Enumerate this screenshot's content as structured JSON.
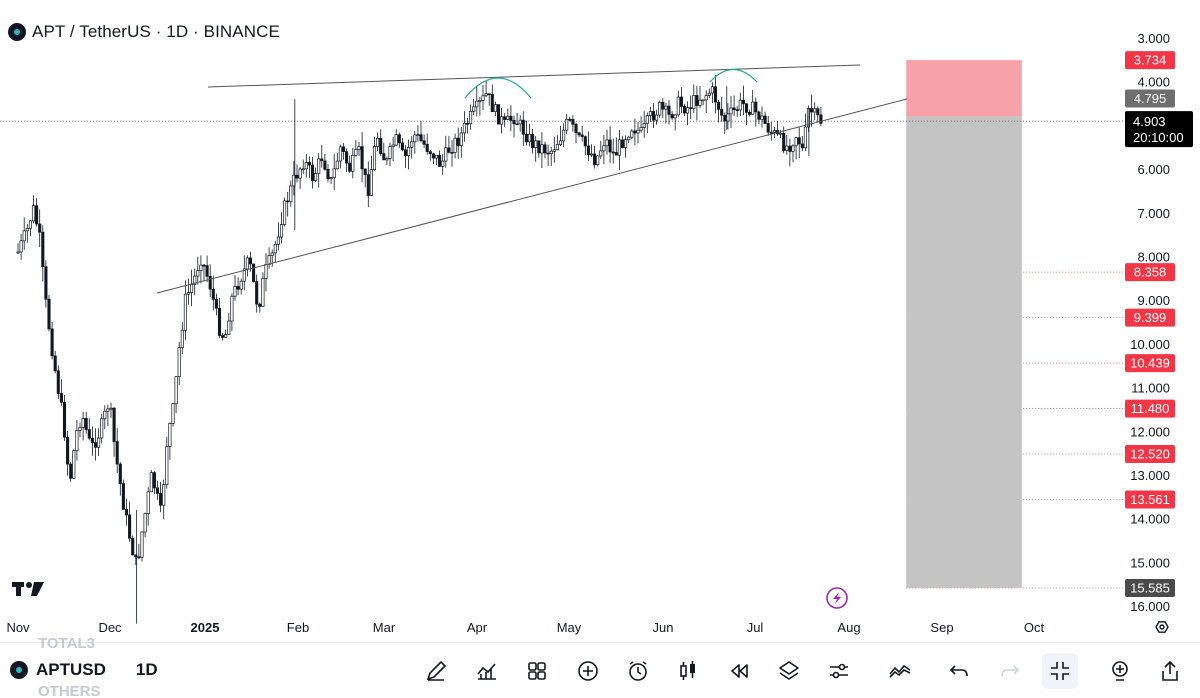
{
  "header": {
    "title": "APT / TetherUS · 1D · BINANCE"
  },
  "chart_data": {
    "type": "candlestick",
    "x_axis_labels": [
      "Nov",
      "Dec",
      "2025",
      "Feb",
      "Mar",
      "Apr",
      "May",
      "Jun",
      "Jul",
      "Aug",
      "Sep",
      "Oct"
    ],
    "y_axis_labels": [
      "3.000",
      "4.000",
      "5.000",
      "6.000",
      "7.000",
      "8.000",
      "9.000",
      "10.000",
      "11.000",
      "12.000",
      "13.000",
      "14.000",
      "15.000",
      "16.000"
    ],
    "current_price": "4.903",
    "countdown": "20:10:00",
    "marked_levels": [
      "3.734",
      "4.795",
      "8.358",
      "9.399",
      "10.439",
      "11.480",
      "12.520",
      "13.561",
      "15.585"
    ],
    "position": {
      "stop": 3.734,
      "entry": 4.795,
      "target": 15.585
    },
    "price_path": [
      [
        "2024-11-01",
        7.9
      ],
      [
        "2024-11-04",
        7.4
      ],
      [
        "2024-11-06",
        6.9
      ],
      [
        "2024-11-08",
        7.5
      ],
      [
        "2024-11-10",
        9.0
      ],
      [
        "2024-11-13",
        10.5
      ],
      [
        "2024-11-16",
        11.8
      ],
      [
        "2024-11-18",
        13.2
      ],
      [
        "2024-11-20",
        12.1
      ],
      [
        "2024-11-22",
        11.6
      ],
      [
        "2024-11-25",
        12.4
      ],
      [
        "2024-11-28",
        12.0
      ],
      [
        "2024-12-01",
        11.3
      ],
      [
        "2024-12-03",
        12.5
      ],
      [
        "2024-12-06",
        13.8
      ],
      [
        "2024-12-08",
        14.5
      ],
      [
        "2024-12-10",
        15.1
      ],
      [
        "2024-12-12",
        14.2
      ],
      [
        "2024-12-15",
        13.0
      ],
      [
        "2024-12-18",
        13.9
      ],
      [
        "2024-12-20",
        12.2
      ],
      [
        "2024-12-22",
        11.5
      ],
      [
        "2024-12-24",
        10.1
      ],
      [
        "2024-12-26",
        9.0
      ],
      [
        "2024-12-29",
        8.5
      ],
      [
        "2024-12-31",
        8.0
      ],
      [
        "2025-01-03",
        8.6
      ],
      [
        "2025-01-06",
        9.6
      ],
      [
        "2025-01-08",
        9.9
      ],
      [
        "2025-01-10",
        9.0
      ],
      [
        "2025-01-13",
        8.5
      ],
      [
        "2025-01-16",
        8.1
      ],
      [
        "2025-01-19",
        9.2
      ],
      [
        "2025-01-21",
        8.4
      ],
      [
        "2025-01-24",
        7.9
      ],
      [
        "2025-01-27",
        7.0
      ],
      [
        "2025-01-31",
        6.2
      ],
      [
        "2025-02-03",
        5.8
      ],
      [
        "2025-02-06",
        6.2
      ],
      [
        "2025-02-09",
        5.7
      ],
      [
        "2025-02-12",
        6.3
      ],
      [
        "2025-02-15",
        5.5
      ],
      [
        "2025-02-18",
        6.0
      ],
      [
        "2025-02-21",
        5.6
      ],
      [
        "2025-02-24",
        6.5
      ],
      [
        "2025-02-27",
        5.2
      ],
      [
        "2025-03-02",
        5.9
      ],
      [
        "2025-03-05",
        5.3
      ],
      [
        "2025-03-08",
        5.8
      ],
      [
        "2025-03-11",
        5.2
      ],
      [
        "2025-03-14",
        5.4
      ],
      [
        "2025-03-17",
        5.6
      ],
      [
        "2025-03-20",
        5.9
      ],
      [
        "2025-03-23",
        5.5
      ],
      [
        "2025-03-26",
        5.3
      ],
      [
        "2025-03-29",
        4.9
      ],
      [
        "2025-04-01",
        4.6
      ],
      [
        "2025-04-04",
        4.3
      ],
      [
        "2025-04-07",
        4.7
      ],
      [
        "2025-04-10",
        5.0
      ],
      [
        "2025-04-13",
        4.8
      ],
      [
        "2025-04-16",
        5.1
      ],
      [
        "2025-04-19",
        5.4
      ],
      [
        "2025-04-22",
        5.5
      ],
      [
        "2025-04-25",
        5.6
      ],
      [
        "2025-04-28",
        5.3
      ],
      [
        "2025-05-01",
        4.9
      ],
      [
        "2025-05-04",
        5.3
      ],
      [
        "2025-05-07",
        5.5
      ],
      [
        "2025-05-10",
        5.8
      ],
      [
        "2025-05-13",
        5.3
      ],
      [
        "2025-05-16",
        5.7
      ],
      [
        "2025-05-19",
        5.3
      ],
      [
        "2025-05-22",
        5.0
      ],
      [
        "2025-05-25",
        5.2
      ],
      [
        "2025-05-28",
        4.8
      ],
      [
        "2025-05-31",
        4.6
      ],
      [
        "2025-06-03",
        4.8
      ],
      [
        "2025-06-06",
        4.5
      ],
      [
        "2025-06-09",
        4.6
      ],
      [
        "2025-06-12",
        4.4
      ],
      [
        "2025-06-15",
        4.3
      ],
      [
        "2025-06-17",
        4.2
      ],
      [
        "2025-06-19",
        4.5
      ],
      [
        "2025-06-21",
        4.9
      ],
      [
        "2025-06-24",
        4.7
      ],
      [
        "2025-06-27",
        4.5
      ],
      [
        "2025-06-30",
        4.6
      ],
      [
        "2025-07-03",
        4.8
      ],
      [
        "2025-07-06",
        5.1
      ],
      [
        "2025-07-09",
        5.3
      ],
      [
        "2025-07-12",
        5.5
      ],
      [
        "2025-07-15",
        5.2
      ],
      [
        "2025-07-17",
        5.6
      ],
      [
        "2025-07-19",
        4.6
      ],
      [
        "2025-07-21",
        4.8
      ],
      [
        "2025-07-23",
        4.9
      ]
    ]
  },
  "bottom_bar": {
    "symbol": "APTUSD",
    "timeframe": "1D",
    "ghost_top": "TOTAL3",
    "ghost_bottom": "OTHERS",
    "tools": [
      "pencil-icon",
      "indicators-icon",
      "templates-icon",
      "add-icon",
      "alert-icon",
      "candles-icon",
      "replay-icon",
      "layers-icon",
      "settings-sliders-icon",
      "compare-icon",
      "undo-icon",
      "redo-icon",
      "collapse-icon",
      "add-note-icon",
      "share-icon"
    ]
  },
  "colors": {
    "candle": "#131722",
    "stop_zone": "#f7a1a8",
    "target_zone": "#c4c4c4",
    "level_badge": "#f23645",
    "entry_badge": "#6e6e6e",
    "price_badge": "#000000",
    "target_badge": "#4a4a4a",
    "arc": "#22ab94",
    "accent": "#9c27b0"
  }
}
